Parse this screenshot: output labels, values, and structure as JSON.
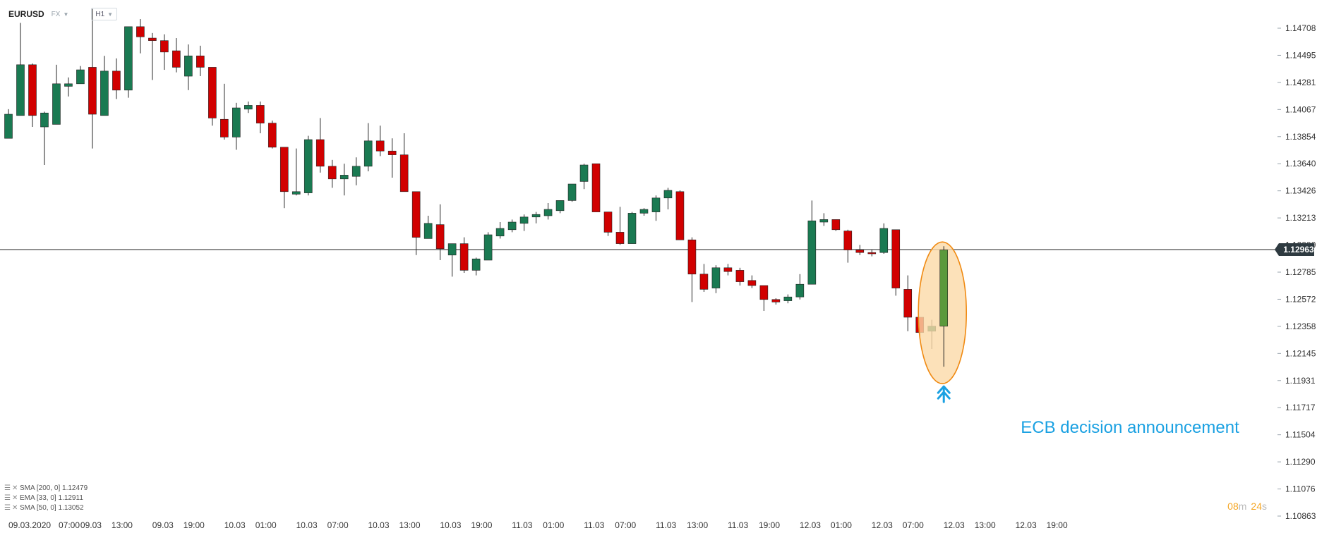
{
  "header": {
    "symbol": "EURUSD",
    "market": "FX",
    "timeframe": "H1"
  },
  "current_price": "1.12963",
  "countdown": {
    "minutes": "08",
    "m_unit": "m",
    "seconds": "24",
    "s_unit": "s"
  },
  "annotation": "ECB decision announcement",
  "indicators": [
    {
      "label": "SMA [200, 0] 1.12479"
    },
    {
      "label": "EMA [33, 0] 1.12911"
    },
    {
      "label": "SMA [50, 0] 1.13052"
    }
  ],
  "colors": {
    "up": "#1a7a52",
    "down": "#d10000",
    "highlight_up": "#5b9a3c",
    "annotation": "#1ba1e2",
    "ellipse_stroke": "#f08a12",
    "ellipse_fill": "#fbd9a8",
    "countdown": "#f5a623"
  },
  "chart_data": {
    "type": "candlestick",
    "symbol": "EURUSD",
    "ylim": [
      1.1086,
      1.148
    ],
    "y_ticks": [
      "1.14708",
      "1.14495",
      "1.14281",
      "1.14067",
      "1.13854",
      "1.13640",
      "1.13426",
      "1.13213",
      "1.12999",
      "1.12785",
      "1.12572",
      "1.12358",
      "1.12145",
      "1.11931",
      "1.11717",
      "1.11504",
      "1.11290",
      "1.11076",
      "1.10863"
    ],
    "x_ticks": [
      "09.03.2020",
      "07:00",
      "09.03",
      "13:00",
      "09.03",
      "19:00",
      "10.03",
      "01:00",
      "10.03",
      "07:00",
      "10.03",
      "13:00",
      "10.03",
      "19:00",
      "11.03",
      "01:00",
      "11.03",
      "07:00",
      "11.03",
      "13:00",
      "11.03",
      "19:00",
      "12.03",
      "01:00",
      "12.03",
      "07:00",
      "12.03",
      "13:00",
      "12.03",
      "19:00"
    ],
    "candles": [
      {
        "o": 1.1384,
        "h": 1.1407,
        "l": 1.1384,
        "c": 1.1403
      },
      {
        "o": 1.1402,
        "h": 1.1475,
        "l": 1.1402,
        "c": 1.1442
      },
      {
        "o": 1.1442,
        "h": 1.1443,
        "l": 1.1393,
        "c": 1.1402
      },
      {
        "o": 1.1393,
        "h": 1.1405,
        "l": 1.1363,
        "c": 1.1404
      },
      {
        "o": 1.1395,
        "h": 1.1442,
        "l": 1.1395,
        "c": 1.1427
      },
      {
        "o": 1.1425,
        "h": 1.1432,
        "l": 1.1417,
        "c": 1.1427
      },
      {
        "o": 1.1427,
        "h": 1.1441,
        "l": 1.1427,
        "c": 1.1438
      },
      {
        "o": 1.144,
        "h": 1.1486,
        "l": 1.1376,
        "c": 1.1403
      },
      {
        "o": 1.1402,
        "h": 1.1449,
        "l": 1.1402,
        "c": 1.1437
      },
      {
        "o": 1.1437,
        "h": 1.1447,
        "l": 1.1415,
        "c": 1.1422
      },
      {
        "o": 1.1422,
        "h": 1.1472,
        "l": 1.1416,
        "c": 1.1472
      },
      {
        "o": 1.1472,
        "h": 1.1478,
        "l": 1.1451,
        "c": 1.1464
      },
      {
        "o": 1.1463,
        "h": 1.1467,
        "l": 1.143,
        "c": 1.1461
      },
      {
        "o": 1.1461,
        "h": 1.1466,
        "l": 1.1438,
        "c": 1.1452
      },
      {
        "o": 1.1453,
        "h": 1.1463,
        "l": 1.1436,
        "c": 1.144
      },
      {
        "o": 1.1433,
        "h": 1.1458,
        "l": 1.1422,
        "c": 1.1449
      },
      {
        "o": 1.1449,
        "h": 1.1457,
        "l": 1.1433,
        "c": 1.144
      },
      {
        "o": 1.144,
        "h": 1.144,
        "l": 1.1394,
        "c": 1.14
      },
      {
        "o": 1.1399,
        "h": 1.1427,
        "l": 1.1383,
        "c": 1.1385
      },
      {
        "o": 1.1385,
        "h": 1.1412,
        "l": 1.1375,
        "c": 1.1408
      },
      {
        "o": 1.1407,
        "h": 1.1413,
        "l": 1.1404,
        "c": 1.141
      },
      {
        "o": 1.141,
        "h": 1.1413,
        "l": 1.1388,
        "c": 1.1396
      },
      {
        "o": 1.1396,
        "h": 1.1398,
        "l": 1.1376,
        "c": 1.1377
      },
      {
        "o": 1.1377,
        "h": 1.1377,
        "l": 1.1329,
        "c": 1.1342
      },
      {
        "o": 1.134,
        "h": 1.1376,
        "l": 1.1339,
        "c": 1.1342
      },
      {
        "o": 1.1341,
        "h": 1.1386,
        "l": 1.1339,
        "c": 1.1383
      },
      {
        "o": 1.1383,
        "h": 1.14,
        "l": 1.1357,
        "c": 1.1362
      },
      {
        "o": 1.1362,
        "h": 1.1367,
        "l": 1.1345,
        "c": 1.1352
      },
      {
        "o": 1.1352,
        "h": 1.1364,
        "l": 1.1339,
        "c": 1.1355
      },
      {
        "o": 1.1354,
        "h": 1.1369,
        "l": 1.1347,
        "c": 1.1362
      },
      {
        "o": 1.1362,
        "h": 1.1396,
        "l": 1.1358,
        "c": 1.1382
      },
      {
        "o": 1.1382,
        "h": 1.1394,
        "l": 1.137,
        "c": 1.1374
      },
      {
        "o": 1.1374,
        "h": 1.1384,
        "l": 1.1353,
        "c": 1.1371
      },
      {
        "o": 1.1371,
        "h": 1.1388,
        "l": 1.1342,
        "c": 1.1342
      },
      {
        "o": 1.1342,
        "h": 1.1342,
        "l": 1.1292,
        "c": 1.1306
      },
      {
        "o": 1.1305,
        "h": 1.1323,
        "l": 1.1305,
        "c": 1.1317
      },
      {
        "o": 1.1316,
        "h": 1.1332,
        "l": 1.1288,
        "c": 1.1297
      },
      {
        "o": 1.1292,
        "h": 1.1301,
        "l": 1.1275,
        "c": 1.1301
      },
      {
        "o": 1.1301,
        "h": 1.1306,
        "l": 1.1278,
        "c": 1.128
      },
      {
        "o": 1.128,
        "h": 1.129,
        "l": 1.1276,
        "c": 1.1289
      },
      {
        "o": 1.1288,
        "h": 1.131,
        "l": 1.1288,
        "c": 1.1308
      },
      {
        "o": 1.1307,
        "h": 1.1318,
        "l": 1.1305,
        "c": 1.1313
      },
      {
        "o": 1.1312,
        "h": 1.132,
        "l": 1.131,
        "c": 1.1318
      },
      {
        "o": 1.1317,
        "h": 1.1324,
        "l": 1.1311,
        "c": 1.1322
      },
      {
        "o": 1.1322,
        "h": 1.1326,
        "l": 1.1317,
        "c": 1.1324
      },
      {
        "o": 1.1323,
        "h": 1.1333,
        "l": 1.132,
        "c": 1.1328
      },
      {
        "o": 1.1327,
        "h": 1.1335,
        "l": 1.1325,
        "c": 1.1335
      },
      {
        "o": 1.1335,
        "h": 1.1348,
        "l": 1.1334,
        "c": 1.1348
      },
      {
        "o": 1.135,
        "h": 1.1364,
        "l": 1.1344,
        "c": 1.1363
      },
      {
        "o": 1.1364,
        "h": 1.1364,
        "l": 1.1326,
        "c": 1.1326
      },
      {
        "o": 1.1326,
        "h": 1.1326,
        "l": 1.1307,
        "c": 1.131
      },
      {
        "o": 1.131,
        "h": 1.133,
        "l": 1.13,
        "c": 1.1301
      },
      {
        "o": 1.1301,
        "h": 1.1326,
        "l": 1.1301,
        "c": 1.1325
      },
      {
        "o": 1.1325,
        "h": 1.1329,
        "l": 1.1323,
        "c": 1.1328
      },
      {
        "o": 1.1326,
        "h": 1.1339,
        "l": 1.1319,
        "c": 1.1337
      },
      {
        "o": 1.1337,
        "h": 1.1345,
        "l": 1.1328,
        "c": 1.1343
      },
      {
        "o": 1.1342,
        "h": 1.1343,
        "l": 1.1305,
        "c": 1.1304
      },
      {
        "o": 1.1304,
        "h": 1.1306,
        "l": 1.1255,
        "c": 1.1277
      },
      {
        "o": 1.1277,
        "h": 1.1285,
        "l": 1.1263,
        "c": 1.1265
      },
      {
        "o": 1.1266,
        "h": 1.1284,
        "l": 1.1262,
        "c": 1.1282
      },
      {
        "o": 1.1282,
        "h": 1.1285,
        "l": 1.1276,
        "c": 1.1279
      },
      {
        "o": 1.128,
        "h": 1.1282,
        "l": 1.1268,
        "c": 1.1271
      },
      {
        "o": 1.1272,
        "h": 1.1276,
        "l": 1.1266,
        "c": 1.1268
      },
      {
        "o": 1.1268,
        "h": 1.1268,
        "l": 1.1248,
        "c": 1.1257
      },
      {
        "o": 1.1257,
        "h": 1.1258,
        "l": 1.1253,
        "c": 1.1255
      },
      {
        "o": 1.1256,
        "h": 1.1261,
        "l": 1.1254,
        "c": 1.1259
      },
      {
        "o": 1.1259,
        "h": 1.1277,
        "l": 1.1257,
        "c": 1.1269
      },
      {
        "o": 1.1269,
        "h": 1.1335,
        "l": 1.1269,
        "c": 1.1319
      },
      {
        "o": 1.1318,
        "h": 1.1325,
        "l": 1.1315,
        "c": 1.132
      },
      {
        "o": 1.132,
        "h": 1.132,
        "l": 1.1311,
        "c": 1.1312
      },
      {
        "o": 1.1311,
        "h": 1.1312,
        "l": 1.1286,
        "c": 1.1296
      },
      {
        "o": 1.1296,
        "h": 1.13,
        "l": 1.1292,
        "c": 1.1294
      },
      {
        "o": 1.1294,
        "h": 1.1296,
        "l": 1.1291,
        "c": 1.1293
      },
      {
        "o": 1.1294,
        "h": 1.1317,
        "l": 1.1293,
        "c": 1.1313
      },
      {
        "o": 1.1312,
        "h": 1.1312,
        "l": 1.126,
        "c": 1.1266
      },
      {
        "o": 1.1265,
        "h": 1.1276,
        "l": 1.1232,
        "c": 1.1243
      },
      {
        "o": 1.1243,
        "h": 1.1243,
        "l": 1.1228,
        "c": 1.1231
      },
      {
        "o": 1.1232,
        "h": 1.1241,
        "l": 1.1218,
        "c": 1.1236
      },
      {
        "o": 1.1236,
        "h": 1.1299,
        "l": 1.1204,
        "c": 1.1296
      }
    ]
  }
}
